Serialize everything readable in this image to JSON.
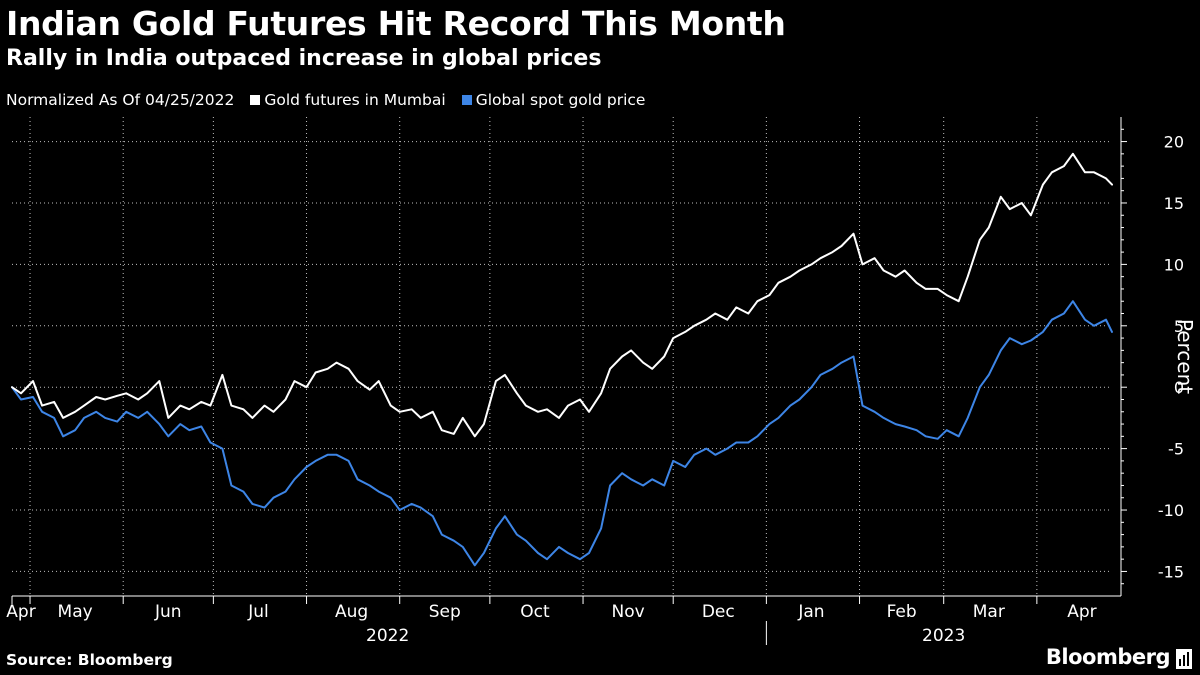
{
  "header": {
    "title": "Indian Gold Futures Hit Record This Month",
    "subtitle": "Rally in India outpaced increase in global prices"
  },
  "legend": {
    "note": "Normalized As Of 04/25/2022",
    "items": [
      {
        "label": "Gold futures in Mumbai",
        "color": "#ffffff"
      },
      {
        "label": "Global spot gold price",
        "color": "#3d85e6"
      }
    ]
  },
  "footer": {
    "source": "Source: Bloomberg",
    "brand": "Bloomberg"
  },
  "colors": {
    "background": "#000000",
    "grid": "#bfbfbf",
    "mumbai": "#ffffff",
    "global": "#3d85e6"
  },
  "chart_data": {
    "type": "line",
    "title": "Indian Gold Futures Hit Record This Month",
    "subtitle": "Rally in India outpaced increase in global prices",
    "ylabel": "Percent",
    "ylim": [
      -17,
      22
    ],
    "yticks": [
      -15,
      -10,
      -5,
      0,
      5,
      10,
      15,
      20
    ],
    "xlim": [
      "2022-04-25",
      "2023-04-26"
    ],
    "month_labels": [
      {
        "label": "Apr",
        "date": "2022-04-28"
      },
      {
        "label": "May",
        "date": "2022-05-16"
      },
      {
        "label": "Jun",
        "date": "2022-06-16"
      },
      {
        "label": "Jul",
        "date": "2022-07-16"
      },
      {
        "label": "Aug",
        "date": "2022-08-16"
      },
      {
        "label": "Sep",
        "date": "2022-09-16"
      },
      {
        "label": "Oct",
        "date": "2022-10-16"
      },
      {
        "label": "Nov",
        "date": "2022-11-16"
      },
      {
        "label": "Dec",
        "date": "2022-12-16"
      },
      {
        "label": "Jan",
        "date": "2023-01-16"
      },
      {
        "label": "Feb",
        "date": "2023-02-15"
      },
      {
        "label": "Mar",
        "date": "2023-03-16"
      },
      {
        "label": "Apr",
        "date": "2023-04-16"
      }
    ],
    "month_boundaries": [
      "2022-05-01",
      "2022-06-01",
      "2022-07-01",
      "2022-08-01",
      "2022-09-01",
      "2022-10-01",
      "2022-11-01",
      "2022-12-01",
      "2023-01-01",
      "2023-02-01",
      "2023-03-01",
      "2023-04-01"
    ],
    "years": [
      {
        "label": "2022",
        "date": "2022-08-28"
      },
      {
        "label": "2023",
        "date": "2023-03-01"
      }
    ],
    "year_boundary": "2023-01-01",
    "grid": true,
    "legend_position": "top-left",
    "series": [
      {
        "name": "Gold futures in Mumbai",
        "color": "#ffffff",
        "points": [
          [
            "2022-04-25",
            0.0
          ],
          [
            "2022-04-28",
            -0.5
          ],
          [
            "2022-05-02",
            0.5
          ],
          [
            "2022-05-05",
            -1.5
          ],
          [
            "2022-05-09",
            -1.2
          ],
          [
            "2022-05-12",
            -2.5
          ],
          [
            "2022-05-16",
            -2.0
          ],
          [
            "2022-05-19",
            -1.5
          ],
          [
            "2022-05-23",
            -0.8
          ],
          [
            "2022-05-26",
            -1.0
          ],
          [
            "2022-05-30",
            -0.7
          ],
          [
            "2022-06-02",
            -0.5
          ],
          [
            "2022-06-06",
            -1.0
          ],
          [
            "2022-06-09",
            -0.5
          ],
          [
            "2022-06-13",
            0.5
          ],
          [
            "2022-06-16",
            -2.5
          ],
          [
            "2022-06-20",
            -1.5
          ],
          [
            "2022-06-23",
            -1.8
          ],
          [
            "2022-06-27",
            -1.2
          ],
          [
            "2022-06-30",
            -1.5
          ],
          [
            "2022-07-04",
            1.0
          ],
          [
            "2022-07-07",
            -1.5
          ],
          [
            "2022-07-11",
            -1.8
          ],
          [
            "2022-07-14",
            -2.5
          ],
          [
            "2022-07-18",
            -1.5
          ],
          [
            "2022-07-21",
            -2.0
          ],
          [
            "2022-07-25",
            -1.0
          ],
          [
            "2022-07-28",
            0.5
          ],
          [
            "2022-08-01",
            0.0
          ],
          [
            "2022-08-04",
            1.2
          ],
          [
            "2022-08-08",
            1.5
          ],
          [
            "2022-08-11",
            2.0
          ],
          [
            "2022-08-15",
            1.5
          ],
          [
            "2022-08-18",
            0.5
          ],
          [
            "2022-08-22",
            -0.2
          ],
          [
            "2022-08-25",
            0.5
          ],
          [
            "2022-08-29",
            -1.5
          ],
          [
            "2022-09-01",
            -2.0
          ],
          [
            "2022-09-05",
            -1.8
          ],
          [
            "2022-09-08",
            -2.5
          ],
          [
            "2022-09-12",
            -2.0
          ],
          [
            "2022-09-15",
            -3.5
          ],
          [
            "2022-09-19",
            -3.8
          ],
          [
            "2022-09-22",
            -2.5
          ],
          [
            "2022-09-26",
            -4.0
          ],
          [
            "2022-09-29",
            -3.0
          ],
          [
            "2022-10-03",
            0.5
          ],
          [
            "2022-10-06",
            1.0
          ],
          [
            "2022-10-10",
            -0.5
          ],
          [
            "2022-10-13",
            -1.5
          ],
          [
            "2022-10-17",
            -2.0
          ],
          [
            "2022-10-20",
            -1.8
          ],
          [
            "2022-10-24",
            -2.5
          ],
          [
            "2022-10-27",
            -1.5
          ],
          [
            "2022-10-31",
            -1.0
          ],
          [
            "2022-11-03",
            -2.0
          ],
          [
            "2022-11-07",
            -0.5
          ],
          [
            "2022-11-10",
            1.5
          ],
          [
            "2022-11-14",
            2.5
          ],
          [
            "2022-11-17",
            3.0
          ],
          [
            "2022-11-21",
            2.0
          ],
          [
            "2022-11-24",
            1.5
          ],
          [
            "2022-11-28",
            2.5
          ],
          [
            "2022-12-01",
            4.0
          ],
          [
            "2022-12-05",
            4.5
          ],
          [
            "2022-12-08",
            5.0
          ],
          [
            "2022-12-12",
            5.5
          ],
          [
            "2022-12-15",
            6.0
          ],
          [
            "2022-12-19",
            5.5
          ],
          [
            "2022-12-22",
            6.5
          ],
          [
            "2022-12-26",
            6.0
          ],
          [
            "2022-12-29",
            7.0
          ],
          [
            "2023-01-02",
            7.5
          ],
          [
            "2023-01-05",
            8.5
          ],
          [
            "2023-01-09",
            9.0
          ],
          [
            "2023-01-12",
            9.5
          ],
          [
            "2023-01-16",
            10.0
          ],
          [
            "2023-01-19",
            10.5
          ],
          [
            "2023-01-23",
            11.0
          ],
          [
            "2023-01-26",
            11.5
          ],
          [
            "2023-01-30",
            12.5
          ],
          [
            "2023-02-02",
            10.0
          ],
          [
            "2023-02-06",
            10.5
          ],
          [
            "2023-02-09",
            9.5
          ],
          [
            "2023-02-13",
            9.0
          ],
          [
            "2023-02-16",
            9.5
          ],
          [
            "2023-02-20",
            8.5
          ],
          [
            "2023-02-23",
            8.0
          ],
          [
            "2023-02-27",
            8.0
          ],
          [
            "2023-03-02",
            7.5
          ],
          [
            "2023-03-06",
            7.0
          ],
          [
            "2023-03-09",
            9.0
          ],
          [
            "2023-03-13",
            12.0
          ],
          [
            "2023-03-16",
            13.0
          ],
          [
            "2023-03-20",
            15.5
          ],
          [
            "2023-03-23",
            14.5
          ],
          [
            "2023-03-27",
            15.0
          ],
          [
            "2023-03-30",
            14.0
          ],
          [
            "2023-04-03",
            16.5
          ],
          [
            "2023-04-06",
            17.5
          ],
          [
            "2023-04-10",
            18.0
          ],
          [
            "2023-04-13",
            19.0
          ],
          [
            "2023-04-17",
            17.5
          ],
          [
            "2023-04-20",
            17.5
          ],
          [
            "2023-04-24",
            17.0
          ],
          [
            "2023-04-26",
            16.5
          ]
        ]
      },
      {
        "name": "Global spot gold price",
        "color": "#3d85e6",
        "points": [
          [
            "2022-04-25",
            0.0
          ],
          [
            "2022-04-28",
            -1.0
          ],
          [
            "2022-05-02",
            -0.8
          ],
          [
            "2022-05-05",
            -2.0
          ],
          [
            "2022-05-09",
            -2.5
          ],
          [
            "2022-05-12",
            -4.0
          ],
          [
            "2022-05-16",
            -3.5
          ],
          [
            "2022-05-19",
            -2.5
          ],
          [
            "2022-05-23",
            -2.0
          ],
          [
            "2022-05-26",
            -2.5
          ],
          [
            "2022-05-30",
            -2.8
          ],
          [
            "2022-06-02",
            -2.0
          ],
          [
            "2022-06-06",
            -2.5
          ],
          [
            "2022-06-09",
            -2.0
          ],
          [
            "2022-06-13",
            -3.0
          ],
          [
            "2022-06-16",
            -4.0
          ],
          [
            "2022-06-20",
            -3.0
          ],
          [
            "2022-06-23",
            -3.5
          ],
          [
            "2022-06-27",
            -3.2
          ],
          [
            "2022-06-30",
            -4.5
          ],
          [
            "2022-07-04",
            -5.0
          ],
          [
            "2022-07-07",
            -8.0
          ],
          [
            "2022-07-11",
            -8.5
          ],
          [
            "2022-07-14",
            -9.5
          ],
          [
            "2022-07-18",
            -9.8
          ],
          [
            "2022-07-21",
            -9.0
          ],
          [
            "2022-07-25",
            -8.5
          ],
          [
            "2022-07-28",
            -7.5
          ],
          [
            "2022-08-01",
            -6.5
          ],
          [
            "2022-08-04",
            -6.0
          ],
          [
            "2022-08-08",
            -5.5
          ],
          [
            "2022-08-11",
            -5.5
          ],
          [
            "2022-08-15",
            -6.0
          ],
          [
            "2022-08-18",
            -7.5
          ],
          [
            "2022-08-22",
            -8.0
          ],
          [
            "2022-08-25",
            -8.5
          ],
          [
            "2022-08-29",
            -9.0
          ],
          [
            "2022-09-01",
            -10.0
          ],
          [
            "2022-09-05",
            -9.5
          ],
          [
            "2022-09-08",
            -9.8
          ],
          [
            "2022-09-12",
            -10.5
          ],
          [
            "2022-09-15",
            -12.0
          ],
          [
            "2022-09-19",
            -12.5
          ],
          [
            "2022-09-22",
            -13.0
          ],
          [
            "2022-09-26",
            -14.5
          ],
          [
            "2022-09-29",
            -13.5
          ],
          [
            "2022-10-03",
            -11.5
          ],
          [
            "2022-10-06",
            -10.5
          ],
          [
            "2022-10-10",
            -12.0
          ],
          [
            "2022-10-13",
            -12.5
          ],
          [
            "2022-10-17",
            -13.5
          ],
          [
            "2022-10-20",
            -14.0
          ],
          [
            "2022-10-24",
            -13.0
          ],
          [
            "2022-10-27",
            -13.5
          ],
          [
            "2022-10-31",
            -14.0
          ],
          [
            "2022-11-03",
            -13.5
          ],
          [
            "2022-11-07",
            -11.5
          ],
          [
            "2022-11-10",
            -8.0
          ],
          [
            "2022-11-14",
            -7.0
          ],
          [
            "2022-11-17",
            -7.5
          ],
          [
            "2022-11-21",
            -8.0
          ],
          [
            "2022-11-24",
            -7.5
          ],
          [
            "2022-11-28",
            -8.0
          ],
          [
            "2022-12-01",
            -6.0
          ],
          [
            "2022-12-05",
            -6.5
          ],
          [
            "2022-12-08",
            -5.5
          ],
          [
            "2022-12-12",
            -5.0
          ],
          [
            "2022-12-15",
            -5.5
          ],
          [
            "2022-12-19",
            -5.0
          ],
          [
            "2022-12-22",
            -4.5
          ],
          [
            "2022-12-26",
            -4.5
          ],
          [
            "2022-12-29",
            -4.0
          ],
          [
            "2023-01-02",
            -3.0
          ],
          [
            "2023-01-05",
            -2.5
          ],
          [
            "2023-01-09",
            -1.5
          ],
          [
            "2023-01-12",
            -1.0
          ],
          [
            "2023-01-16",
            0.0
          ],
          [
            "2023-01-19",
            1.0
          ],
          [
            "2023-01-23",
            1.5
          ],
          [
            "2023-01-26",
            2.0
          ],
          [
            "2023-01-30",
            2.5
          ],
          [
            "2023-02-02",
            -1.5
          ],
          [
            "2023-02-06",
            -2.0
          ],
          [
            "2023-02-09",
            -2.5
          ],
          [
            "2023-02-13",
            -3.0
          ],
          [
            "2023-02-16",
            -3.2
          ],
          [
            "2023-02-20",
            -3.5
          ],
          [
            "2023-02-23",
            -4.0
          ],
          [
            "2023-02-27",
            -4.2
          ],
          [
            "2023-03-02",
            -3.5
          ],
          [
            "2023-03-06",
            -4.0
          ],
          [
            "2023-03-09",
            -2.5
          ],
          [
            "2023-03-13",
            0.0
          ],
          [
            "2023-03-16",
            1.0
          ],
          [
            "2023-03-20",
            3.0
          ],
          [
            "2023-03-23",
            4.0
          ],
          [
            "2023-03-27",
            3.5
          ],
          [
            "2023-03-30",
            3.8
          ],
          [
            "2023-04-03",
            4.5
          ],
          [
            "2023-04-06",
            5.5
          ],
          [
            "2023-04-10",
            6.0
          ],
          [
            "2023-04-13",
            7.0
          ],
          [
            "2023-04-17",
            5.5
          ],
          [
            "2023-04-20",
            5.0
          ],
          [
            "2023-04-24",
            5.5
          ],
          [
            "2023-04-26",
            4.5
          ]
        ]
      }
    ]
  }
}
